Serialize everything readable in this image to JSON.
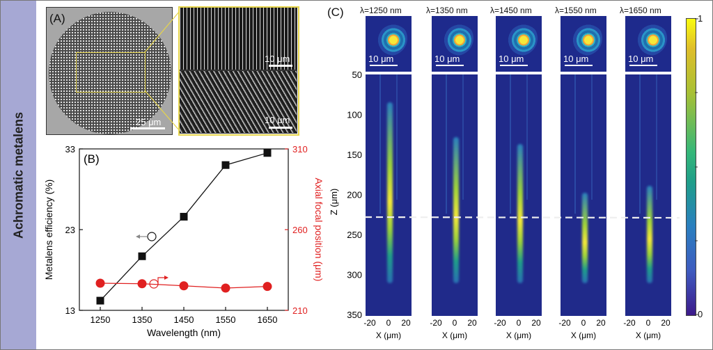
{
  "sidebar": {
    "label": "Achromatic metalens"
  },
  "panel_a": {
    "label": "(A)",
    "scale_main": "25 μm",
    "scale_top": "10 μm",
    "scale_bottom": "10 μm"
  },
  "panel_c": {
    "label": "(C)",
    "wavelength_labels": [
      "λ=1250 nm",
      "λ=1350 nm",
      "λ=1450 nm",
      "λ=1550 nm",
      "λ=1650 nm"
    ],
    "psf_scale": "10 μm",
    "z_axis_label": "Z (μm)",
    "z_ticks": [
      "50",
      "100",
      "150",
      "200",
      "250",
      "300",
      "350"
    ],
    "x_axis_label": "X (μm)",
    "x_ticks": [
      "-20",
      "0",
      "20"
    ],
    "colorbar": {
      "max": "1",
      "min": "0",
      "colors": [
        "#3c1a8a",
        "#2a7fbf",
        "#35b779",
        "#dfbe2a",
        "#f9fb0e"
      ]
    },
    "focal_plane_z": 228
  },
  "chart_data": {
    "type": "line",
    "panel_label": "(B)",
    "categories": [
      1250,
      1350,
      1450,
      1550,
      1650
    ],
    "xlabel": "Wavelength (nm)",
    "xlim": [
      1200,
      1700
    ],
    "x_ticks": [
      "1250",
      "1350",
      "1450",
      "1550",
      "1650"
    ],
    "series": [
      {
        "name": "Metalens efficiency (%)",
        "axis": "left",
        "color": "#111111",
        "marker": "square",
        "values": [
          14.2,
          19.7,
          24.6,
          31.0,
          32.5
        ]
      },
      {
        "name": "Axial focal position (μm)",
        "axis": "right",
        "color": "#e02020",
        "marker": "circle",
        "values": [
          226.8,
          226.5,
          225.2,
          223.8,
          224.8
        ]
      }
    ],
    "ylabel_left": "Metalens efficiency (%)",
    "ylim_left": [
      13,
      33
    ],
    "y_ticks_left": [
      "13",
      "23",
      "33"
    ],
    "ylabel_right": "Axial focal position (μm)",
    "ylim_right": [
      210,
      310
    ],
    "y_ticks_right": [
      "210",
      "260",
      "310"
    ]
  }
}
